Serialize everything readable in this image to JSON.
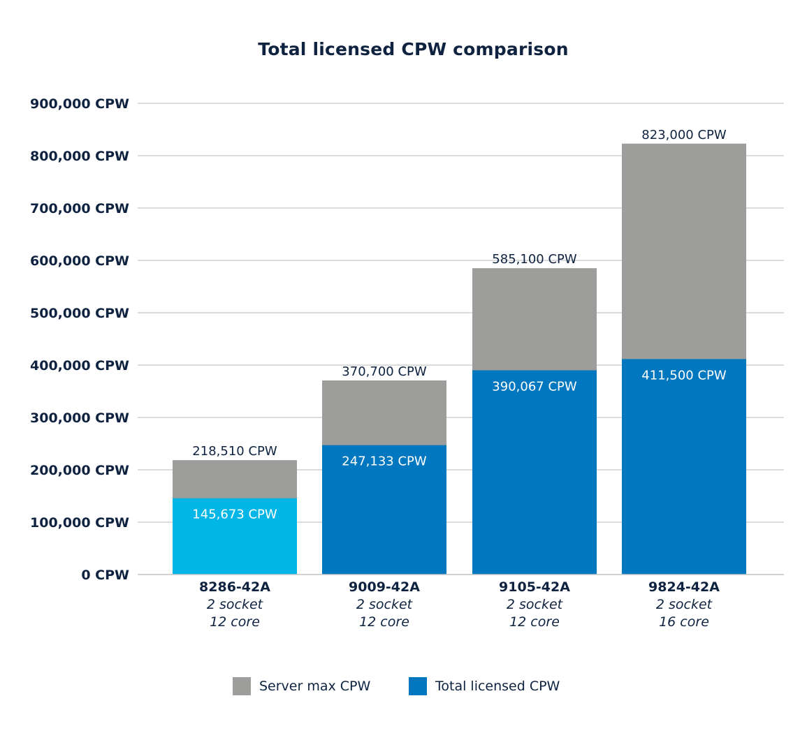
{
  "chart_data": {
    "type": "bar",
    "stacked": "overlay",
    "title": "Total licensed CPW comparison",
    "xlabel": "",
    "ylabel": "",
    "ylim": [
      0,
      900000
    ],
    "yticks": [
      0,
      100000,
      200000,
      300000,
      400000,
      500000,
      600000,
      700000,
      800000,
      900000
    ],
    "ytick_labels": [
      "0 CPW",
      "100,000 CPW",
      "200,000 CPW",
      "300,000 CPW",
      "400,000 CPW",
      "500,000 CPW",
      "600,000 CPW",
      "700,000 CPW",
      "800,000 CPW",
      "900,000 CPW"
    ],
    "grid": true,
    "legend_position": "bottom",
    "categories": [
      "8286-42A",
      "9009-42A",
      "9105-42A",
      "9824-42A"
    ],
    "category_sublabels": [
      [
        "2 socket",
        "12 core"
      ],
      [
        "2 socket",
        "12 core"
      ],
      [
        "2 socket",
        "12 core"
      ],
      [
        "2 socket",
        "16 core"
      ]
    ],
    "series": [
      {
        "name": "Server max CPW",
        "color": "#9d9e9c",
        "values": [
          218510,
          370700,
          585100,
          823000
        ],
        "labels": [
          "218,510 CPW",
          "370,700 CPW",
          "585,100 CPW",
          "823,000 CPW"
        ]
      },
      {
        "name": "Total licensed CPW",
        "color": "#0077be",
        "bar_colors": [
          "#00b6e6",
          "#0077be",
          "#0077be",
          "#0077be"
        ],
        "values": [
          145673,
          247133,
          390067,
          411500
        ],
        "labels": [
          "145,673 CPW",
          "247,133 CPW",
          "390,067 CPW",
          "411,500 CPW"
        ]
      }
    ]
  },
  "colors": {
    "text": "#0f2340",
    "grid": "#c8c8c8"
  }
}
